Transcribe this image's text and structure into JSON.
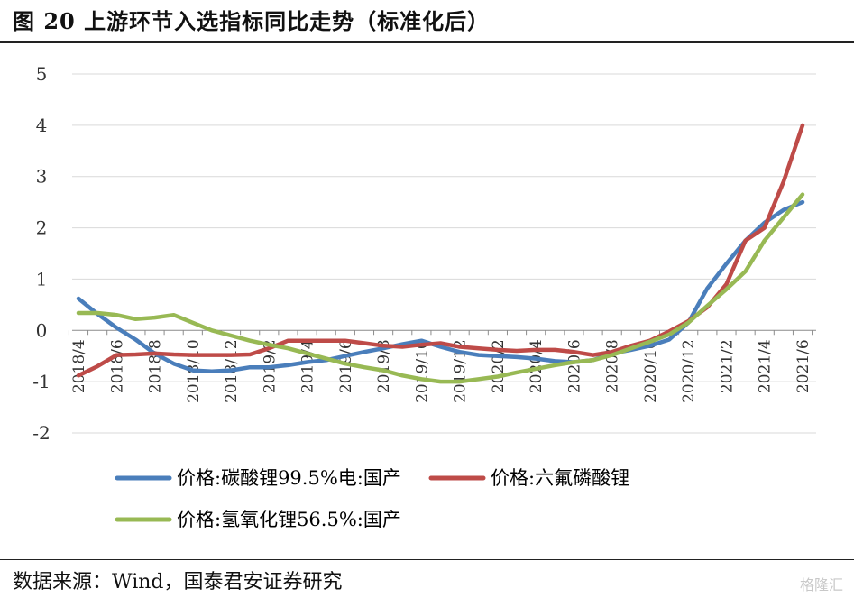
{
  "figure": {
    "title": "图 20  上游环节入选指标同比走势（标准化后）",
    "source": "数据来源：Wind，国泰君安证券研究",
    "watermark": "格隆汇"
  },
  "chart_data": {
    "type": "line",
    "title": "",
    "xlabel": "",
    "ylabel": "",
    "ylim": [
      -2,
      5
    ],
    "yticks": [
      -2,
      -1,
      0,
      1,
      2,
      3,
      4,
      5
    ],
    "grid": "horizontal",
    "legend_position": "bottom",
    "x": [
      "2018/4",
      "2018/5",
      "2018/6",
      "2018/7",
      "2018/8",
      "2018/9",
      "2018/10",
      "2018/11",
      "2018/12",
      "2019/1",
      "2019/2",
      "2019/3",
      "2019/4",
      "2019/5",
      "2019/6",
      "2019/7",
      "2019/8",
      "2019/9",
      "2019/10",
      "2019/11",
      "2019/12",
      "2020/1",
      "2020/2",
      "2020/3",
      "2020/4",
      "2020/5",
      "2020/6",
      "2020/7",
      "2020/8",
      "2020/9",
      "2020/10",
      "2020/11",
      "2020/12",
      "2021/1",
      "2021/2",
      "2021/3",
      "2021/4",
      "2021/5",
      "2021/6"
    ],
    "x_tick_labels": [
      "2018/4",
      "2018/6",
      "2018/8",
      "2018/10",
      "2018/12",
      "2019/2",
      "2019/4",
      "2019/6",
      "2019/8",
      "2019/10",
      "2019/12",
      "2020/2",
      "2020/4",
      "2020/6",
      "2020/8",
      "2020/10",
      "2020/12",
      "2021/2",
      "2021/4",
      "2021/6"
    ],
    "series": [
      {
        "name": "价格:碳酸锂99.5%电:国产",
        "color": "#4a7ebb",
        "values": [
          0.62,
          0.32,
          0.05,
          -0.18,
          -0.45,
          -0.65,
          -0.78,
          -0.8,
          -0.78,
          -0.72,
          -0.72,
          -0.68,
          -0.62,
          -0.58,
          -0.5,
          -0.42,
          -0.35,
          -0.27,
          -0.2,
          -0.32,
          -0.42,
          -0.48,
          -0.5,
          -0.52,
          -0.55,
          -0.6,
          -0.62,
          -0.58,
          -0.45,
          -0.38,
          -0.3,
          -0.18,
          0.15,
          0.82,
          1.3,
          1.75,
          2.1,
          2.35,
          2.5
        ]
      },
      {
        "name": "价格:六氟磷酸锂",
        "color": "#be4b48",
        "values": [
          -0.88,
          -0.7,
          -0.48,
          -0.47,
          -0.45,
          -0.47,
          -0.48,
          -0.48,
          -0.48,
          -0.47,
          -0.35,
          -0.2,
          -0.2,
          -0.2,
          -0.2,
          -0.25,
          -0.3,
          -0.32,
          -0.28,
          -0.25,
          -0.32,
          -0.35,
          -0.38,
          -0.4,
          -0.38,
          -0.38,
          -0.42,
          -0.48,
          -0.42,
          -0.3,
          -0.2,
          -0.02,
          0.18,
          0.45,
          0.9,
          1.75,
          2.0,
          2.9,
          4.0
        ]
      },
      {
        "name": "价格:氢氧化锂56.5%:国产",
        "color": "#98b954",
        "values": [
          0.34,
          0.34,
          0.3,
          0.22,
          0.25,
          0.3,
          0.15,
          0.0,
          -0.1,
          -0.2,
          -0.28,
          -0.35,
          -0.45,
          -0.55,
          -0.65,
          -0.72,
          -0.78,
          -0.88,
          -0.95,
          -1.0,
          -1.0,
          -0.95,
          -0.9,
          -0.82,
          -0.75,
          -0.68,
          -0.62,
          -0.58,
          -0.48,
          -0.35,
          -0.22,
          -0.08,
          0.15,
          0.48,
          0.8,
          1.15,
          1.75,
          2.2,
          2.65
        ]
      }
    ]
  }
}
